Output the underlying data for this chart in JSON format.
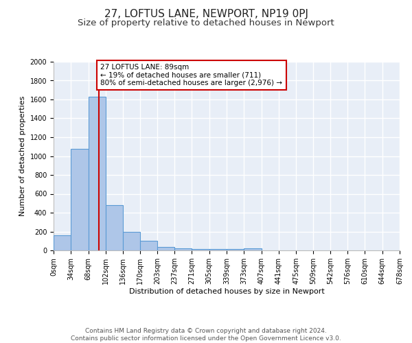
{
  "title": "27, LOFTUS LANE, NEWPORT, NP19 0PJ",
  "subtitle": "Size of property relative to detached houses in Newport",
  "xlabel": "Distribution of detached houses by size in Newport",
  "ylabel": "Number of detached properties",
  "bin_edges": [
    0,
    34,
    68,
    102,
    136,
    170,
    203,
    237,
    271,
    305,
    339,
    373,
    407,
    441,
    475,
    509,
    542,
    576,
    610,
    644,
    678
  ],
  "bar_heights": [
    160,
    1080,
    1630,
    480,
    200,
    100,
    40,
    25,
    15,
    15,
    15,
    20,
    0,
    0,
    0,
    0,
    0,
    0,
    0,
    0
  ],
  "bar_color": "#aec6e8",
  "bar_edge_color": "#5b9bd5",
  "bg_color": "#e8eef7",
  "grid_color": "#ffffff",
  "property_size": 89,
  "vline_color": "#cc0000",
  "annotation_text": "27 LOFTUS LANE: 89sqm\n← 19% of detached houses are smaller (711)\n80% of semi-detached houses are larger (2,976) →",
  "annotation_box_color": "#cc0000",
  "ylim": [
    0,
    2000
  ],
  "yticks": [
    0,
    200,
    400,
    600,
    800,
    1000,
    1200,
    1400,
    1600,
    1800,
    2000
  ],
  "footer_text": "Contains HM Land Registry data © Crown copyright and database right 2024.\nContains public sector information licensed under the Open Government Licence v3.0.",
  "title_fontsize": 11,
  "subtitle_fontsize": 9.5,
  "axis_label_fontsize": 8,
  "tick_fontsize": 7,
  "annotation_fontsize": 7.5,
  "footer_fontsize": 6.5
}
